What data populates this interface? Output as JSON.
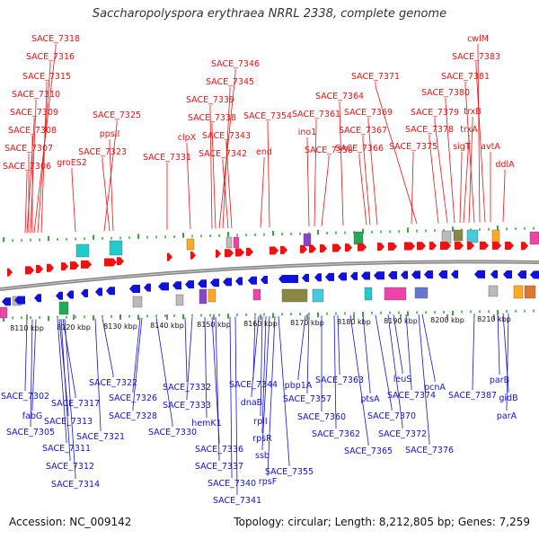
{
  "title": "Saccharopolyspora erythraea NRRL 2338, complete genome",
  "footer": {
    "accession": "Accession: NC_009142",
    "summary": "Topology: circular; Length: 8,212,805 bp; Genes: 7,259"
  },
  "colors": {
    "plus_strand": "#ee1111",
    "minus_strand": "#1111dd",
    "backbone": "#888888",
    "tick": "#33aa33",
    "scale_label": "#111111"
  },
  "scale": {
    "unit": "kbp",
    "start": 8105,
    "end": 8212.8,
    "ticks": [
      {
        "kbp": 8110,
        "label": "8110 kbp"
      },
      {
        "kbp": 8120,
        "label": "8120 kbp"
      },
      {
        "kbp": 8130,
        "label": "8130 kbp"
      },
      {
        "kbp": 8140,
        "label": "8140 kbp"
      },
      {
        "kbp": 8150,
        "label": "8150 kbp"
      },
      {
        "kbp": 8160,
        "label": "8160 kbp"
      },
      {
        "kbp": 8170,
        "label": "8170 kbp"
      },
      {
        "kbp": 8180,
        "label": "8180 kbp"
      },
      {
        "kbp": 8190,
        "label": "8190 kbp"
      },
      {
        "kbp": 8200,
        "label": "8200 kbp"
      },
      {
        "kbp": 8210,
        "label": "8210 kbp"
      }
    ]
  },
  "plus_labels": [
    "SACE_7318",
    "SACE_7316",
    "SACE_7315",
    "SACE_7310",
    "SACE_7309",
    "SACE_7308",
    "SACE_7307",
    "SACE_7306",
    "groES2",
    "SACE_7325",
    "ppsII",
    "SACE_7323",
    "SACE_7331",
    "clpX",
    "SACE_7346",
    "SACE_7345",
    "SACE_7339",
    "SACE_7338",
    "SACE_7343",
    "SACE_7342",
    "SACE_7354",
    "end",
    "SACE_7361",
    "ino1",
    "SACE_7358",
    "SACE_7364",
    "SACE_7371",
    "SACE_7369",
    "SACE_7367",
    "SACE_7366",
    "SACE_7375",
    "SACE_7380",
    "SACE_7379",
    "SACE_7378",
    "cwlM",
    "SACE_7383",
    "SACE_7381",
    "trxB",
    "trxA",
    "sigT",
    "avtA",
    "ddlA"
  ],
  "minus_labels": [
    "SACE_7302",
    "fabG",
    "SACE_7305",
    "SACE_7313",
    "SACE_7317",
    "SACE_7311",
    "SACE_7312",
    "SACE_7314",
    "SACE_7321",
    "SACE_7322",
    "SACE_7326",
    "SACE_7328",
    "SACE_7330",
    "SACE_7332",
    "SACE_7333",
    "hemK1",
    "SACE_7336",
    "SACE_7337",
    "SACE_7340",
    "SACE_7341",
    "SACE_7344",
    "dnaB",
    "rplI",
    "rpsR",
    "ssb",
    "rpsF",
    "SACE_7355",
    "pbp1A",
    "SACE_7357",
    "SACE_7360",
    "SACE_7362",
    "SACE_7363",
    "SACE_7365",
    "ptsA",
    "SACE_7370",
    "SACE_7372",
    "leuS",
    "SACE_7374",
    "SACE_7376",
    "pcnA",
    "SACE_7387",
    "parB",
    "gidB",
    "parA"
  ]
}
